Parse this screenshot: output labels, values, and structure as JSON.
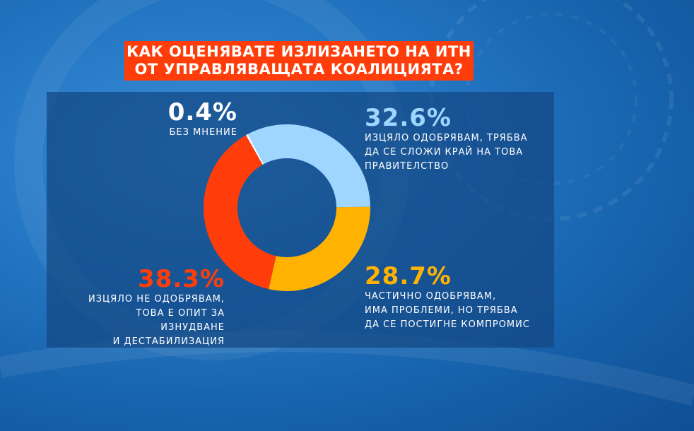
{
  "title": {
    "line1": "КАК ОЦЕНЯВАТЕ ИЗЛИЗАНЕТО НА ИТН",
    "line2": "ОТ УПРАВЛЯВАЩАТА КОАЛИЦИЯТА?"
  },
  "chart_data": {
    "type": "pie",
    "variant": "donut",
    "slices": [
      {
        "pct_label": "32.6%",
        "value": 32.6,
        "desc": [
          "ИЗЦЯЛО ОДОБРЯВАМ, ТРЯБВА",
          "ДА СЕ СЛОЖИ КРАЙ НА ТОВА",
          "ПРАВИТЕЛСТВО"
        ],
        "color": "#9fd6ff"
      },
      {
        "pct_label": "28.7%",
        "value": 28.7,
        "desc": [
          "ЧАСТИЧНО ОДОБРЯВАМ,",
          "ИМА ПРОБЛЕМИ, НО ТРЯБВА",
          "ДА СЕ ПОСТИГНЕ КОМПРОМИС"
        ],
        "color": "#ffb300"
      },
      {
        "pct_label": "38.3%",
        "value": 38.3,
        "desc": [
          "ИЗЦЯЛО НЕ ОДОБРЯВАМ,",
          "ТОВА Е ОПИТ ЗА ИЗНУДВАНЕ",
          "И ДЕСТАБИЛИЗАЦИЯ"
        ],
        "color": "#ff3d0a"
      },
      {
        "pct_label": "0.4%",
        "value": 0.4,
        "desc": [
          "БЕЗ МНЕНИЕ"
        ],
        "color": "#ffffff"
      }
    ]
  },
  "colors": {
    "title_bg": "#ff3d0a",
    "panel_bg": "#14467f",
    "label_light_blue": "#9fd6ff",
    "label_yellow": "#ffb300",
    "label_red": "#ff3d0a",
    "label_white": "#ffffff"
  }
}
